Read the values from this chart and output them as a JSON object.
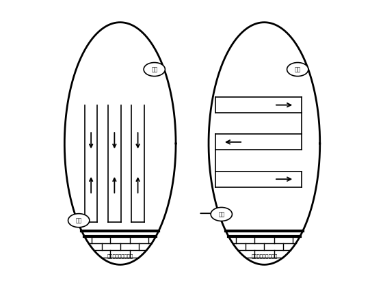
{
  "background_color": "#ffffff",
  "label_qidian": "起点",
  "label_zhongdian": "终点",
  "label_bottom": "下台阶控制爆破开挖",
  "lw_main": 2.0,
  "lw_thin": 1.2,
  "lw_brick": 1.0
}
